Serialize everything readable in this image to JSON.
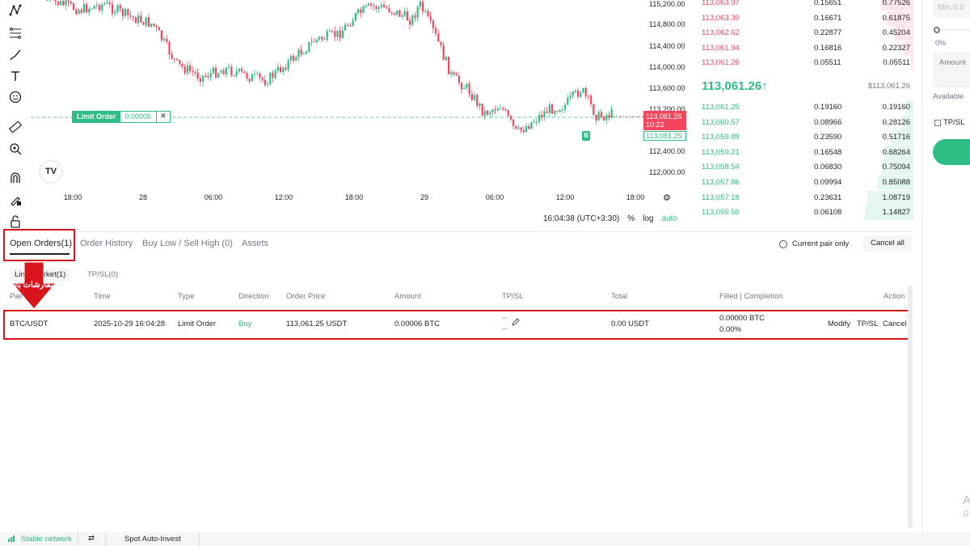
{
  "toolbar": {
    "icons": [
      "pattern-icon",
      "fib-icon",
      "brush-icon",
      "text-icon",
      "emoji-icon",
      "ruler-icon",
      "zoom-in-icon",
      "magnet-icon",
      "lock-drawing-icon",
      "unlock-icon"
    ]
  },
  "chart": {
    "y_ticks": [
      "115,200.00",
      "114,800.00",
      "114,400.00",
      "114,000.00",
      "113,600.00",
      "113,200.00",
      "112,400.00",
      "112,000.00"
    ],
    "x_ticks": [
      "18:00",
      "28",
      "06:00",
      "12:00",
      "18:00",
      "29",
      "06:00",
      "12:00",
      "18:00"
    ],
    "limit_order_label": "Limit Order",
    "limit_order_qty": "0.00006",
    "limit_order_close": "✕",
    "last_price": "113,061.26",
    "countdown": "10:22",
    "order_price_tag": "113,061.25",
    "buy_marker": "B",
    "tv_logo": "TV",
    "time": "16:04:38 (UTC+3:30)",
    "pct_label": "%",
    "log_label": "log",
    "auto_label": "auto",
    "colors": {
      "up": "#2ebd85",
      "down": "#f6465d"
    }
  },
  "orderbook": {
    "asks": [
      {
        "price": "113,063.97",
        "amount": "0.15651",
        "total": "0.77526"
      },
      {
        "price": "113,063.30",
        "amount": "0.16671",
        "total": "0.61875"
      },
      {
        "price": "113,062.62",
        "amount": "0.22877",
        "total": "0.45204"
      },
      {
        "price": "113,061.94",
        "amount": "0.16816",
        "total": "0.22327"
      },
      {
        "price": "113,061.26",
        "amount": "0.05511",
        "total": "0.05511"
      }
    ],
    "mid_price": "113,061.26↑",
    "mid_usd": "$113,061.26",
    "bids": [
      {
        "price": "113,061.25",
        "amount": "0.19160",
        "total": "0.19160"
      },
      {
        "price": "113,060.57",
        "amount": "0.08966",
        "total": "0.28126"
      },
      {
        "price": "113,059.89",
        "amount": "0.23590",
        "total": "0.51716"
      },
      {
        "price": "113,059.21",
        "amount": "0.16548",
        "total": "0.68264"
      },
      {
        "price": "113,058.54",
        "amount": "0.06830",
        "total": "0.75094"
      },
      {
        "price": "113,057.86",
        "amount": "0.09994",
        "total": "0.85088"
      },
      {
        "price": "113,057.18",
        "amount": "0.23631",
        "total": "1.08719"
      },
      {
        "price": "113,056.50",
        "amount": "0.06108",
        "total": "1.14827"
      }
    ]
  },
  "right_panel": {
    "min_placeholder": "Min.0.0",
    "slider_pct": "0%",
    "amount_label": "Amount",
    "available_label": "Available",
    "tpsl_label": "TP/SL",
    "corner_a": "A",
    "corner_g": "G"
  },
  "bottom": {
    "tabs": [
      "Open Orders(1)",
      "Order History",
      "Buy Low / Sell High (0)",
      "Assets"
    ],
    "current_pair_only": "Current pair only",
    "cancel_all": "Cancel all",
    "subtabs": [
      "Limit/Market(1)",
      "TP/SL(0)"
    ],
    "annotation": "سفارشات باز",
    "columns": [
      "Pair",
      "Time",
      "Type",
      "Direction",
      "Order Price",
      "Amount",
      "TP/SL",
      "Total",
      "Filled | Completion",
      "Action"
    ],
    "row": {
      "pair": "BTC/USDT",
      "time": "2025-10-29 16:04:28",
      "type": "Limit Order",
      "direction": "Buy",
      "order_price": "113,061.25 USDT",
      "amount": "0.00006 BTC",
      "tpsl_1": "--",
      "tpsl_2": "--",
      "total": "0.00 USDT",
      "filled": "0.00000 BTC",
      "completion": "0.00%",
      "actions": [
        "Modify",
        "TP/SL",
        "Cancel"
      ]
    }
  },
  "statusbar": {
    "network": "Stable network",
    "settings_glyph": "⇄",
    "auto_invest": "Spot Auto-Invest"
  }
}
